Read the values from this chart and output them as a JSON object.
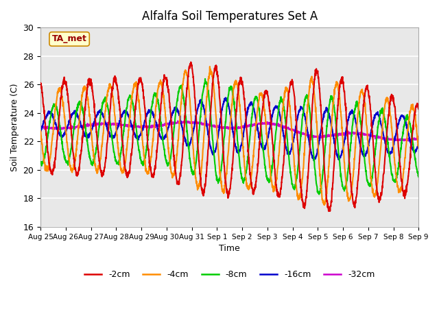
{
  "title": "Alfalfa Soil Temperatures Set A",
  "ylabel": "Soil Temperature (C)",
  "xlabel": "Time",
  "annotation": "TA_met",
  "ylim": [
    16,
    30
  ],
  "plot_bg_color": "#e8e8e8",
  "fig_bg_color": "#ffffff",
  "series": {
    "-2cm": {
      "color": "#dd0000",
      "lw": 1.5
    },
    "-4cm": {
      "color": "#ff8c00",
      "lw": 1.5
    },
    "-8cm": {
      "color": "#00cc00",
      "lw": 1.5
    },
    "-16cm": {
      "color": "#0000cc",
      "lw": 1.5
    },
    "-32cm": {
      "color": "#cc00cc",
      "lw": 1.5
    }
  },
  "xtick_labels": [
    "Aug 25",
    "Aug 26",
    "Aug 27",
    "Aug 28",
    "Aug 29",
    "Aug 30",
    "Aug 31",
    "Sep 1",
    "Sep 2",
    "Sep 3",
    "Sep 4",
    "Sep 5",
    "Sep 6",
    "Sep 7",
    "Sep 8",
    "Sep 9"
  ],
  "ytick_labels": [
    16,
    18,
    20,
    22,
    24,
    26,
    28,
    30
  ]
}
